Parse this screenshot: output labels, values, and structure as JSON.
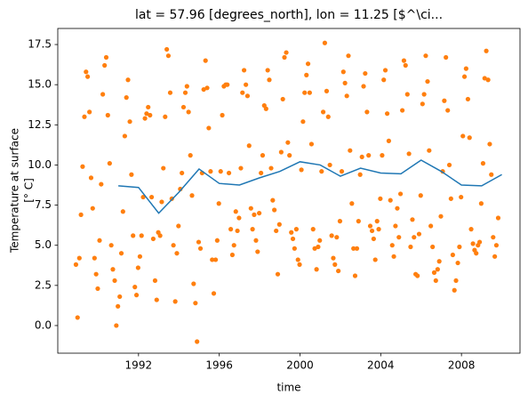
{
  "chart_data": {
    "type": "line",
    "title": "lat = 57.96 [degrees_north], lon = 11.25 [$^\\ci...",
    "xlabel": "time",
    "ylabel": [
      "Temperature at surface",
      "[° C]"
    ],
    "xlim": [
      1988.0,
      2010.9
    ],
    "ylim": [
      -1.72,
      18.5
    ],
    "xticks": [
      1992,
      1996,
      2000,
      2004,
      2008
    ],
    "yticks": [
      {
        "value": 0,
        "label": "0.0"
      },
      2.5,
      {
        "value": 5,
        "label": "5.0"
      },
      7.5,
      {
        "value": 10,
        "label": "10.0"
      },
      12.5,
      {
        "value": 15,
        "label": "15.0"
      },
      17.5
    ],
    "series": [
      {
        "type": "scatter",
        "color": "#ff7f0e",
        "x": [
          1988.9,
          1988.98,
          1989.07,
          1989.15,
          1989.23,
          1989.32,
          1989.4,
          1989.48,
          1989.57,
          1989.65,
          1989.73,
          1989.82,
          1989.9,
          1989.98,
          1990.07,
          1990.15,
          1990.23,
          1990.32,
          1990.4,
          1990.48,
          1990.57,
          1990.65,
          1990.73,
          1990.82,
          1990.9,
          1990.98,
          1991.07,
          1991.15,
          1991.23,
          1991.32,
          1991.4,
          1991.48,
          1991.57,
          1991.65,
          1991.73,
          1991.82,
          1991.9,
          1991.98,
          1992.07,
          1992.15,
          1992.23,
          1992.32,
          1992.4,
          1992.48,
          1992.57,
          1992.65,
          1992.73,
          1992.82,
          1992.9,
          1992.98,
          1993.07,
          1993.15,
          1993.23,
          1993.32,
          1993.4,
          1993.48,
          1993.57,
          1993.65,
          1993.73,
          1993.82,
          1993.9,
          1993.98,
          1994.07,
          1994.15,
          1994.23,
          1994.32,
          1994.4,
          1994.48,
          1994.57,
          1994.65,
          1994.73,
          1994.82,
          1994.9,
          1994.98,
          1995.07,
          1995.15,
          1995.23,
          1995.32,
          1995.4,
          1995.48,
          1995.57,
          1995.65,
          1995.73,
          1995.82,
          1995.9,
          1995.98,
          1996.07,
          1996.15,
          1996.23,
          1996.32,
          1996.4,
          1996.48,
          1996.57,
          1996.65,
          1996.73,
          1996.82,
          1996.9,
          1996.98,
          1997.07,
          1997.15,
          1997.23,
          1997.32,
          1997.4,
          1997.48,
          1997.57,
          1997.65,
          1997.73,
          1997.82,
          1997.9,
          1997.98,
          1998.07,
          1998.15,
          1998.23,
          1998.32,
          1998.4,
          1998.48,
          1998.57,
          1998.65,
          1998.73,
          1998.82,
          1998.9,
          1998.98,
          1999.07,
          1999.15,
          1999.23,
          1999.32,
          1999.4,
          1999.48,
          1999.57,
          1999.65,
          1999.73,
          1999.82,
          1999.9,
          1999.98,
          2000.07,
          2000.15,
          2000.23,
          2000.32,
          2000.4,
          2000.48,
          2000.57,
          2000.65,
          2000.73,
          2000.82,
          2000.9,
          2000.98,
          2001.07,
          2001.15,
          2001.23,
          2001.32,
          2001.4,
          2001.48,
          2001.57,
          2001.65,
          2001.73,
          2001.82,
          2001.9,
          2001.98,
          2002.07,
          2002.15,
          2002.23,
          2002.32,
          2002.4,
          2002.48,
          2002.57,
          2002.65,
          2002.73,
          2002.82,
          2002.9,
          2002.98,
          2003.07,
          2003.15,
          2003.23,
          2003.32,
          2003.4,
          2003.48,
          2003.57,
          2003.65,
          2003.73,
          2003.82,
          2003.9,
          2003.98,
          2004.07,
          2004.15,
          2004.23,
          2004.32,
          2004.4,
          2004.48,
          2004.57,
          2004.65,
          2004.73,
          2004.82,
          2004.9,
          2004.98,
          2005.07,
          2005.15,
          2005.23,
          2005.32,
          2005.4,
          2005.48,
          2005.57,
          2005.65,
          2005.73,
          2005.82,
          2005.9,
          2005.98,
          2006.07,
          2006.15,
          2006.23,
          2006.32,
          2006.4,
          2006.48,
          2006.57,
          2006.65,
          2006.73,
          2006.82,
          2006.9,
          2006.98,
          2007.07,
          2007.15,
          2007.23,
          2007.32,
          2007.4,
          2007.48,
          2007.57,
          2007.65,
          2007.73,
          2007.82,
          2007.9,
          2007.98,
          2008.07,
          2008.15,
          2008.23,
          2008.32,
          2008.4,
          2008.48,
          2008.57,
          2008.65,
          2008.73,
          2008.82,
          2008.9,
          2008.98,
          2009.07,
          2009.15,
          2009.23,
          2009.32,
          2009.4,
          2009.48,
          2009.57,
          2009.65,
          2009.73,
          2009.82
        ],
        "values": [
          3.8,
          0.5,
          4.2,
          6.9,
          9.9,
          13.0,
          15.8,
          15.5,
          13.3,
          9.2,
          7.3,
          4.2,
          3.2,
          2.3,
          5.3,
          8.8,
          14.4,
          16.2,
          16.7,
          13.1,
          10.1,
          5.0,
          3.5,
          2.8,
          0.0,
          1.2,
          1.8,
          4.5,
          7.1,
          11.8,
          14.2,
          15.3,
          12.7,
          9.4,
          5.6,
          2.4,
          1.9,
          3.6,
          4.3,
          5.6,
          8.0,
          12.9,
          13.2,
          13.6,
          13.1,
          8.0,
          5.4,
          2.8,
          1.6,
          5.8,
          5.6,
          7.7,
          9.8,
          13.0,
          17.2,
          16.8,
          14.5,
          7.9,
          5.0,
          1.5,
          4.5,
          6.2,
          8.5,
          9.5,
          13.6,
          14.5,
          14.9,
          13.3,
          10.6,
          8.1,
          2.6,
          1.4,
          -1.0,
          5.2,
          4.8,
          9.5,
          14.7,
          16.5,
          14.8,
          12.3,
          9.6,
          4.1,
          2.0,
          4.1,
          5.3,
          7.6,
          9.6,
          13.1,
          14.9,
          15.0,
          15.0,
          9.5,
          6.0,
          4.4,
          5.0,
          7.1,
          5.9,
          6.7,
          9.8,
          14.5,
          15.9,
          15.0,
          14.3,
          11.2,
          7.3,
          6.0,
          6.9,
          5.3,
          4.6,
          7.0,
          9.5,
          10.6,
          13.7,
          13.5,
          15.9,
          15.3,
          9.8,
          7.8,
          7.2,
          5.9,
          3.2,
          6.3,
          10.8,
          14.1,
          16.7,
          17.0,
          11.4,
          10.6,
          5.8,
          5.4,
          4.8,
          6.0,
          4.1,
          3.8,
          9.7,
          12.7,
          14.5,
          15.6,
          16.3,
          14.5,
          11.3,
          6.0,
          4.8,
          3.5,
          4.9,
          5.3,
          9.6,
          13.3,
          17.6,
          14.6,
          13.0,
          10.0,
          5.6,
          4.2,
          3.8,
          5.5,
          3.4,
          6.5,
          9.6,
          15.8,
          15.1,
          14.3,
          16.8,
          10.9,
          7.6,
          4.8,
          3.1,
          4.8,
          6.5,
          9.4,
          10.5,
          14.9,
          15.7,
          13.3,
          10.6,
          6.2,
          5.9,
          5.4,
          4.1,
          6.5,
          6.0,
          7.9,
          10.6,
          15.3,
          15.9,
          13.2,
          11.5,
          7.8,
          5.0,
          4.3,
          6.2,
          7.3,
          5.5,
          8.2,
          13.4,
          16.5,
          16.2,
          14.4,
          10.7,
          4.9,
          6.6,
          5.5,
          3.2,
          3.1,
          5.7,
          8.1,
          13.8,
          14.4,
          16.8,
          15.2,
          10.9,
          6.2,
          4.9,
          3.3,
          2.8,
          3.5,
          4.0,
          6.8,
          9.6,
          14.0,
          16.7,
          13.4,
          10.0,
          7.9,
          4.4,
          2.2,
          2.8,
          3.9,
          4.9,
          8.0,
          11.8,
          15.5,
          16.0,
          14.1,
          11.7,
          6.0,
          5.1,
          4.7,
          4.5,
          5.0,
          5.2,
          7.6,
          10.1,
          15.4,
          17.1,
          15.3,
          11.3,
          9.4,
          5.5,
          4.3,
          5.0,
          6.7
        ]
      },
      {
        "type": "line",
        "color": "#1f77b4",
        "x": [
          1991,
          1992,
          1993,
          1994,
          1995,
          1996,
          1997,
          1998,
          1999,
          2000,
          2001,
          2002,
          2003,
          2004,
          2005,
          2006,
          2007,
          2008,
          2009,
          2010
        ],
        "values": [
          8.7,
          8.6,
          7.0,
          8.3,
          9.75,
          8.85,
          8.75,
          9.2,
          9.6,
          10.2,
          10.0,
          9.3,
          9.8,
          9.5,
          9.45,
          10.3,
          9.6,
          8.75,
          8.7,
          9.4
        ]
      }
    ]
  }
}
